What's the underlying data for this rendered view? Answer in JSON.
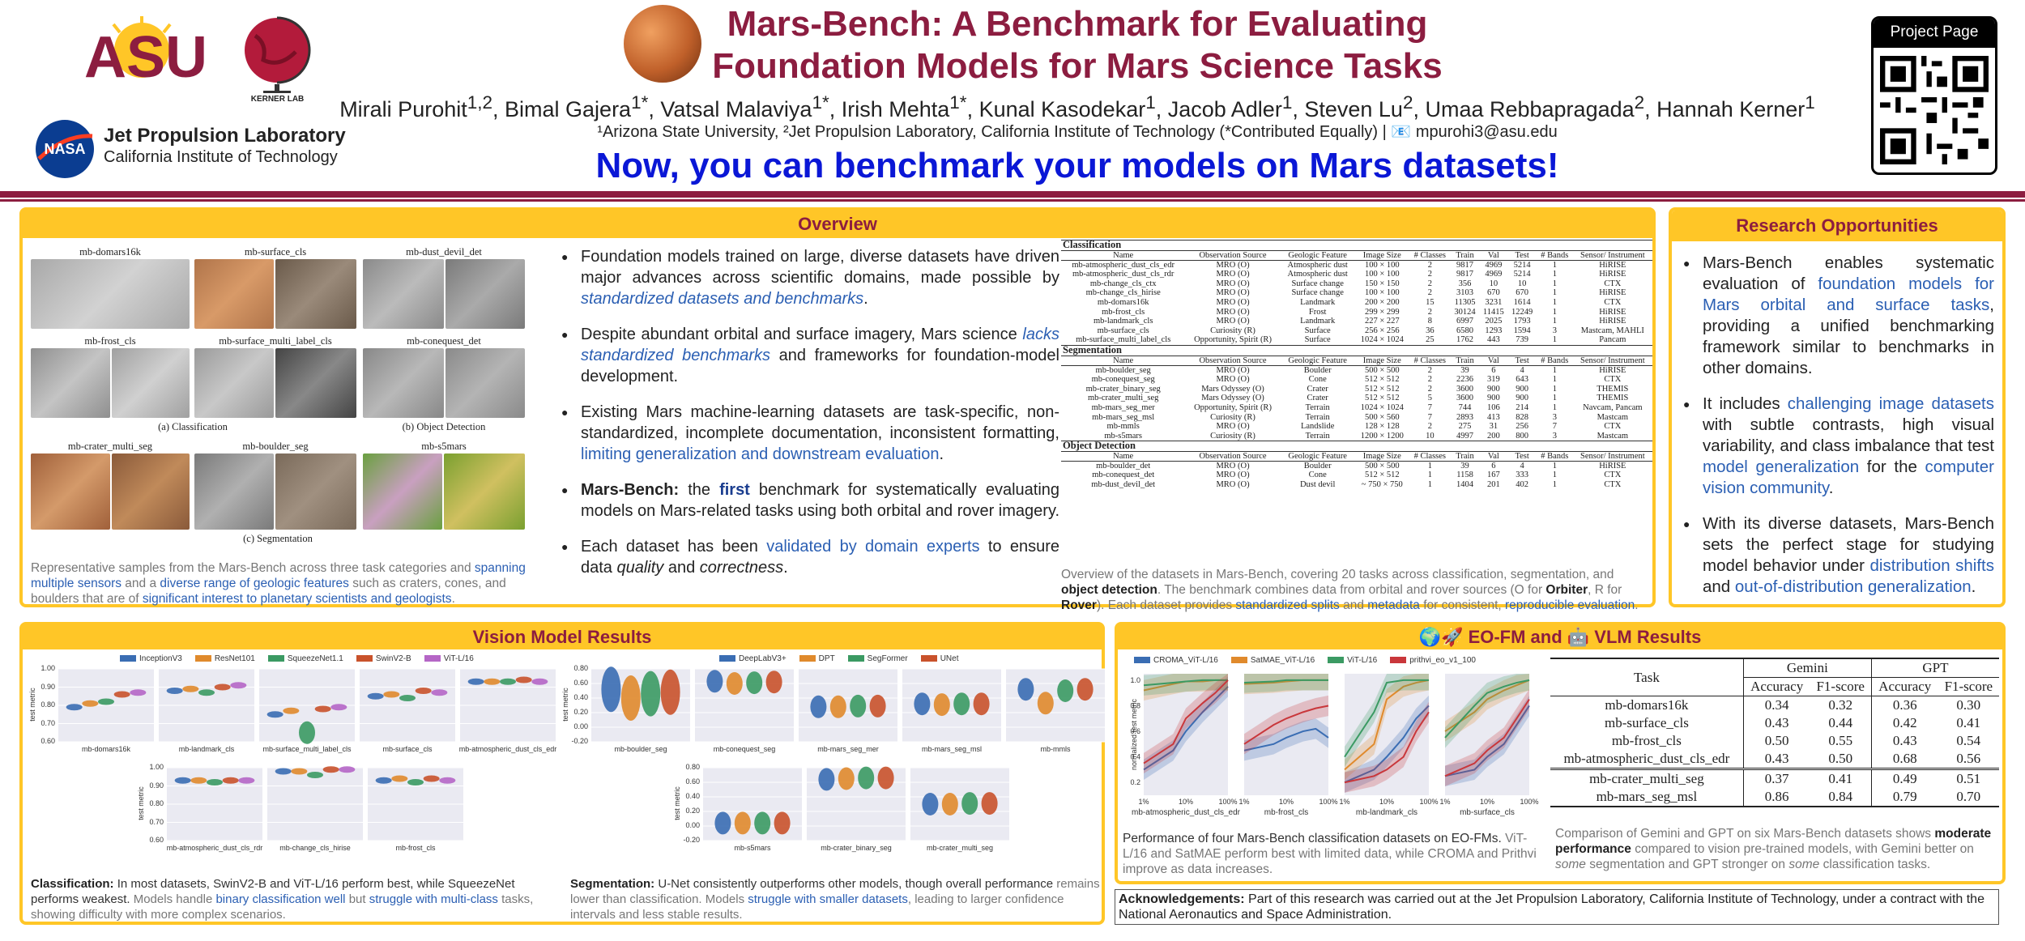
{
  "header": {
    "title_line1": "Mars-Bench: A Benchmark for Evaluating",
    "title_line2": "Foundation Models for Mars Science Tasks",
    "authors_html": "Mirali Purohit<sup>1,2</sup>, Bimal Gajera<sup>1*</sup>, Vatsal Malaviya<sup>1*</sup>, Irish Mehta<sup>1*</sup>, Kunal Kasodekar<sup>1</sup>, Jacob Adler<sup>1</sup>, Steven Lu<sup>2</sup>, Umaa Rebbapragada<sup>2</sup>, Hannah Kerner<sup>1</sup>",
    "affiliations": "¹Arizona State University, ²Jet Propulsion Laboratory, California Institute of Technology (*Contributed Equally)  |  📧 mpurohi3@asu.edu",
    "tagline": "Now, you can benchmark your models on Mars datasets!",
    "logo_asu": "ASU",
    "logo_kerner": "KERNER LAB",
    "logo_jpl_line1": "Jet Propulsion Laboratory",
    "logo_jpl_line2": "California Institute of Technology",
    "logo_nasa": "NASA",
    "project_page": "Project Page"
  },
  "overview": {
    "title": "Overview",
    "img_labels": {
      "domars": "mb-domars16k",
      "surface": "mb-surface_cls",
      "dust": "mb-dust_devil_det",
      "frost": "mb-frost_cls",
      "surface_multi": "mb-surface_multi_label_cls",
      "conequest": "mb-conequest_det",
      "crater": "mb-crater_multi_seg",
      "boulder": "mb-boulder_seg",
      "s5mars": "mb-s5mars",
      "cls": "(a) Classification",
      "det": "(b) Object Detection",
      "seg": "(c) Segmentation"
    },
    "caption": "Representative samples from the Mars-Bench across three task categories and spanning multiple sensors and a diverse range of geologic features such as craters, cones, and boulders that are of significant interest to planetary scientists and geologists.",
    "bullets": [
      "Foundation models trained on large, diverse datasets have driven major advances across scientific domains, made possible by standardized datasets and benchmarks.",
      "Despite abundant orbital and surface imagery, Mars science lacks standardized benchmarks and frameworks for foundation-model development.",
      "Existing Mars machine-learning datasets are task-specific, non-standardized, incomplete documentation, inconsistent formatting, limiting generalization and downstream evaluation.",
      "Mars-Bench: the first benchmark for systematically evaluating models on Mars-related tasks using both orbital and rover imagery.",
      "Each dataset has been validated by domain experts to ensure data quality and correctness."
    ],
    "table_caption": "Overview of the datasets in Mars-Bench, covering 20 tasks across classification, segmentation, and object detection. The benchmark combines data from orbital and rover sources (O for Orbiter, R for Rover). Each dataset provides standardized splits and metadata for consistent, reproducible evaluation.",
    "table_headers": [
      "Name",
      "Observation Source",
      "Geologic Feature",
      "Image Size",
      "# Classes",
      "Train",
      "Val",
      "Test",
      "# Bands",
      "Sensor/ Instrument"
    ],
    "sections": [
      {
        "title": "Classification",
        "rows": [
          [
            "mb-atmospheric_dust_cls_edr",
            "MRO (O)",
            "Atmospheric dust",
            "100 × 100",
            "2",
            "9817",
            "4969",
            "5214",
            "1",
            "HiRISE"
          ],
          [
            "mb-atmospheric_dust_cls_rdr",
            "MRO (O)",
            "Atmospheric dust",
            "100 × 100",
            "2",
            "9817",
            "4969",
            "5214",
            "1",
            "HiRISE"
          ],
          [
            "mb-change_cls_ctx",
            "MRO (O)",
            "Surface change",
            "150 × 150",
            "2",
            "356",
            "10",
            "10",
            "1",
            "CTX"
          ],
          [
            "mb-change_cls_hirise",
            "MRO (O)",
            "Surface change",
            "100 × 100",
            "2",
            "3103",
            "670",
            "670",
            "1",
            "HiRISE"
          ],
          [
            "mb-domars16k",
            "MRO (O)",
            "Landmark",
            "200 × 200",
            "15",
            "11305",
            "3231",
            "1614",
            "1",
            "CTX"
          ],
          [
            "mb-frost_cls",
            "MRO (O)",
            "Frost",
            "299 × 299",
            "2",
            "30124",
            "11415",
            "12249",
            "1",
            "HiRISE"
          ],
          [
            "mb-landmark_cls",
            "MRO (O)",
            "Landmark",
            "227 × 227",
            "8",
            "6997",
            "2025",
            "1793",
            "1",
            "HiRISE"
          ],
          [
            "mb-surface_cls",
            "Curiosity (R)",
            "Surface",
            "256 × 256",
            "36",
            "6580",
            "1293",
            "1594",
            "3",
            "Mastcam, MAHLI"
          ],
          [
            "mb-surface_multi_label_cls",
            "Opportunity, Spirit (R)",
            "Surface",
            "1024 × 1024",
            "25",
            "1762",
            "443",
            "739",
            "1",
            "Pancam"
          ]
        ]
      },
      {
        "title": "Segmentation",
        "rows": [
          [
            "mb-boulder_seg",
            "MRO (O)",
            "Boulder",
            "500 × 500",
            "2",
            "39",
            "6",
            "4",
            "1",
            "HiRISE"
          ],
          [
            "mb-conequest_seg",
            "MRO (O)",
            "Cone",
            "512 × 512",
            "2",
            "2236",
            "319",
            "643",
            "1",
            "CTX"
          ],
          [
            "mb-crater_binary_seg",
            "Mars Odyssey (O)",
            "Crater",
            "512 × 512",
            "2",
            "3600",
            "900",
            "900",
            "1",
            "THEMIS"
          ],
          [
            "mb-crater_multi_seg",
            "Mars Odyssey (O)",
            "Crater",
            "512 × 512",
            "5",
            "3600",
            "900",
            "900",
            "1",
            "THEMIS"
          ],
          [
            "mb-mars_seg_mer",
            "Opportunity, Spirit (R)",
            "Terrain",
            "1024 × 1024",
            "7",
            "744",
            "106",
            "214",
            "1",
            "Navcam, Pancam"
          ],
          [
            "mb-mars_seg_msl",
            "Curiosity (R)",
            "Terrain",
            "500 × 560",
            "7",
            "2893",
            "413",
            "828",
            "3",
            "Mastcam"
          ],
          [
            "mb-mmls",
            "MRO (O)",
            "Landslide",
            "128 × 128",
            "2",
            "275",
            "31",
            "256",
            "7",
            "CTX"
          ],
          [
            "mb-s5mars",
            "Curiosity (R)",
            "Terrain",
            "1200 × 1200",
            "10",
            "4997",
            "200",
            "800",
            "3",
            "Mastcam"
          ]
        ]
      },
      {
        "title": "Object Detection",
        "rows": [
          [
            "mb-boulder_det",
            "MRO (O)",
            "Boulder",
            "500 × 500",
            "1",
            "39",
            "6",
            "4",
            "1",
            "HiRISE"
          ],
          [
            "mb-conequest_det",
            "MRO (O)",
            "Cone",
            "512 × 512",
            "1",
            "1158",
            "167",
            "333",
            "1",
            "CTX"
          ],
          [
            "mb-dust_devil_det",
            "MRO (O)",
            "Dust devil",
            "~ 750 × 750",
            "1",
            "1404",
            "201",
            "402",
            "1",
            "CTX"
          ]
        ]
      }
    ]
  },
  "research": {
    "title": "Research Opportunities",
    "bullets": [
      "Mars-Bench enables systematic evaluation of foundation models for Mars orbital and surface tasks, providing a unified benchmarking framework similar to benchmarks in other domains.",
      "It includes challenging image datasets with subtle contrasts, high visual variability, and class imbalance that test model generalization for the computer vision community.",
      "With its diverse datasets, Mars-Bench sets the perfect stage for studying model behavior under distribution shifts and out-of-distribution generalization."
    ]
  },
  "vision": {
    "title": "Vision Model Results",
    "cls_legend": [
      "InceptionV3",
      "ResNet101",
      "SqueezeNet1.1",
      "SwinV2-B",
      "ViT-L/16"
    ],
    "seg_legend": [
      "DeepLabV3+",
      "DPT",
      "SegFormer",
      "UNet"
    ],
    "colors": [
      "#3a6db3",
      "#e08a2c",
      "#3b9a63",
      "#c9522b",
      "#b566c6"
    ],
    "cls_axis_label": "test metric",
    "cls_subplots": [
      "mb-domars16k",
      "mb-landmark_cls",
      "mb-surface_multi_label_cls",
      "mb-surface_cls",
      "mb-atmospheric_dust_cls_edr",
      "mb-atmospheric_dust_cls_rdr",
      "mb-change_cls_hirise",
      "mb-frost_cls"
    ],
    "seg_subplots": [
      "mb-boulder_seg",
      "mb-conequest_seg",
      "mb-mars_seg_mer",
      "mb-mars_seg_msl",
      "mb-mmls",
      "mb-s5mars",
      "mb-crater_binary_seg",
      "mb-crater_multi_seg"
    ],
    "cls_yticks": [
      "1.00",
      "0.90",
      "0.80",
      "0.70",
      "0.60"
    ],
    "seg_yticks": [
      "0.80",
      "0.60",
      "0.40",
      "0.20",
      "0.00",
      "-0.20"
    ],
    "cls_caption": "Classification: In most datasets, SwinV2-B and ViT-L/16 perform best, while SqueezeNet performs weakest. Models handle binary classification well but struggle with multi-class tasks, showing difficulty with more complex scenarios.",
    "seg_caption": "Segmentation: U-Net consistently outperforms other models, though overall performance remains lower than classification. Models struggle with smaller datasets, leading to larger confidence intervals and less stable results."
  },
  "eofm": {
    "title": "🌍🚀 EO-FM and 🤖 VLM Results",
    "legend": [
      "CROMA_ViT-L/16",
      "SatMAE_ViT-L/16",
      "ViT-L/16",
      "prithvi_eo_v1_100"
    ],
    "colors": [
      "#3a6db3",
      "#e08a2c",
      "#3b9a63",
      "#c9373b"
    ],
    "y_label": "normalized test metric",
    "yticks": [
      "1.0",
      "0.8",
      "0.6",
      "0.4",
      "0.2"
    ],
    "xticks": [
      "1%",
      "10%",
      "100%"
    ],
    "subplots": [
      "mb-atmospheric_dust_cls_edr",
      "mb-frost_cls",
      "mb-landmark_cls",
      "mb-surface_cls"
    ],
    "caption": "Performance of four Mars-Bench classification datasets on EO-FMs. ViT-L/16 and SatMAE perform best with limited data, while CROMA and Prithvi improve as data increases.",
    "vlm_table": {
      "h_task": "Task",
      "h_gemini": "Gemini",
      "h_gpt": "GPT",
      "h_acc": "Accuracy",
      "h_f1": "F1-score",
      "rows": [
        [
          "mb-domars16k",
          "0.34",
          "0.32",
          "0.36",
          "0.30"
        ],
        [
          "mb-surface_cls",
          "0.43",
          "0.44",
          "0.42",
          "0.41"
        ],
        [
          "mb-frost_cls",
          "0.50",
          "0.55",
          "0.43",
          "0.54"
        ],
        [
          "mb-atmospheric_dust_cls_edr",
          "0.43",
          "0.50",
          "0.68",
          "0.56"
        ],
        [
          "mb-crater_multi_seg",
          "0.37",
          "0.41",
          "0.49",
          "0.51"
        ],
        [
          "mb-mars_seg_msl",
          "0.86",
          "0.84",
          "0.79",
          "0.70"
        ]
      ]
    },
    "vlm_caption": "Comparison of Gemini and GPT on six Mars-Bench datasets shows moderate performance compared to vision pre-trained models, with Gemini better on some segmentation and GPT stronger on some classification tasks."
  },
  "ack": "Acknowledgements: Part of this research was carried out at the Jet Propulsion Laboratory, California Institute of Technology, under a contract with the National Aeronautics and Space Administration.",
  "chart_data": [
    {
      "type": "violin",
      "title": "Classification test metric",
      "ylim": [
        0.6,
        1.0
      ],
      "categories": [
        "mb-domars16k",
        "mb-landmark_cls",
        "mb-surface_multi_label_cls",
        "mb-surface_cls",
        "mb-atmospheric_dust_cls_edr",
        "mb-atmospheric_dust_cls_rdr",
        "mb-change_cls_hirise",
        "mb-frost_cls"
      ],
      "series": [
        {
          "name": "InceptionV3",
          "values": [
            0.79,
            0.88,
            0.75,
            0.85,
            0.93,
            0.93,
            0.98,
            0.93
          ]
        },
        {
          "name": "ResNet101",
          "values": [
            0.81,
            0.89,
            0.77,
            0.86,
            0.93,
            0.93,
            0.98,
            0.94
          ]
        },
        {
          "name": "SqueezeNet1.1",
          "values": [
            0.82,
            0.87,
            0.65,
            0.84,
            0.93,
            0.92,
            0.96,
            0.92
          ]
        },
        {
          "name": "SwinV2-B",
          "values": [
            0.86,
            0.9,
            0.78,
            0.88,
            0.94,
            0.93,
            0.99,
            0.94
          ]
        },
        {
          "name": "ViT-L/16",
          "values": [
            0.87,
            0.91,
            0.79,
            0.87,
            0.93,
            0.93,
            0.99,
            0.93
          ]
        }
      ]
    },
    {
      "type": "violin",
      "title": "Segmentation test metric",
      "ylim": [
        -0.2,
        0.8
      ],
      "categories": [
        "mb-boulder_seg",
        "mb-conequest_seg",
        "mb-mars_seg_mer",
        "mb-mars_seg_msl",
        "mb-mmls",
        "mb-s5mars",
        "mb-crater_binary_seg",
        "mb-crater_multi_seg"
      ],
      "series": [
        {
          "name": "DeepLabV3+",
          "values": [
            0.52,
            0.63,
            0.28,
            0.32,
            0.52,
            0.04,
            0.64,
            0.3
          ]
        },
        {
          "name": "DPT",
          "values": [
            0.4,
            0.6,
            0.28,
            0.31,
            0.33,
            0.04,
            0.65,
            0.3
          ]
        },
        {
          "name": "SegFormer",
          "values": [
            0.46,
            0.61,
            0.29,
            0.32,
            0.5,
            0.04,
            0.66,
            0.31
          ]
        },
        {
          "name": "UNet",
          "values": [
            0.48,
            0.62,
            0.29,
            0.32,
            0.52,
            0.04,
            0.66,
            0.31
          ]
        }
      ]
    },
    {
      "type": "line",
      "title": "EO-FM label efficiency",
      "x": [
        1,
        5,
        10,
        25,
        50,
        100
      ],
      "ylim": [
        0.1,
        1.05
      ],
      "subplots": [
        {
          "name": "mb-atmospheric_dust_cls_edr",
          "series": [
            {
              "name": "CROMA_ViT-L/16",
              "values": [
                0.3,
                0.45,
                0.6,
                0.75,
                0.85,
                0.95
              ]
            },
            {
              "name": "SatMAE_ViT-L/16",
              "values": [
                0.92,
                0.97,
                0.99,
                0.99,
                1.0,
                1.0
              ]
            },
            {
              "name": "ViT-L/16",
              "values": [
                0.96,
                0.98,
                0.99,
                1.0,
                1.0,
                1.0
              ]
            },
            {
              "name": "prithvi_eo_v1_100",
              "values": [
                0.35,
                0.5,
                0.7,
                0.82,
                0.9,
                1.0
              ]
            }
          ]
        },
        {
          "name": "mb-frost_cls",
          "series": [
            {
              "name": "CROMA_ViT-L/16",
              "values": [
                0.45,
                0.5,
                0.55,
                0.6,
                0.62,
                0.55
              ]
            },
            {
              "name": "SatMAE_ViT-L/16",
              "values": [
                0.97,
                0.98,
                0.99,
                1.0,
                1.0,
                1.0
              ]
            },
            {
              "name": "ViT-L/16",
              "values": [
                0.98,
                0.99,
                1.0,
                1.0,
                1.0,
                1.0
              ]
            },
            {
              "name": "prithvi_eo_v1_100",
              "values": [
                0.5,
                0.65,
                0.7,
                0.75,
                0.78,
                0.8
              ]
            }
          ]
        },
        {
          "name": "mb-landmark_cls",
          "series": [
            {
              "name": "CROMA_ViT-L/16",
              "values": [
                0.2,
                0.3,
                0.4,
                0.55,
                0.7,
                0.8
              ]
            },
            {
              "name": "SatMAE_ViT-L/16",
              "values": [
                0.3,
                0.5,
                0.85,
                0.95,
                0.98,
                1.0
              ]
            },
            {
              "name": "ViT-L/16",
              "values": [
                0.4,
                0.75,
                0.98,
                1.0,
                1.0,
                1.0
              ]
            },
            {
              "name": "prithvi_eo_v1_100",
              "values": [
                0.2,
                0.25,
                0.3,
                0.4,
                0.6,
                0.75
              ]
            }
          ]
        },
        {
          "name": "mb-surface_cls",
          "series": [
            {
              "name": "CROMA_ViT-L/16",
              "values": [
                0.25,
                0.3,
                0.4,
                0.5,
                0.65,
                0.8
              ]
            },
            {
              "name": "SatMAE_ViT-L/16",
              "values": [
                0.6,
                0.75,
                0.85,
                0.92,
                0.96,
                1.0
              ]
            },
            {
              "name": "ViT-L/16",
              "values": [
                0.55,
                0.8,
                0.9,
                0.95,
                0.98,
                1.0
              ]
            },
            {
              "name": "prithvi_eo_v1_100",
              "values": [
                0.25,
                0.35,
                0.45,
                0.55,
                0.7,
                0.85
              ]
            }
          ]
        }
      ]
    }
  ]
}
